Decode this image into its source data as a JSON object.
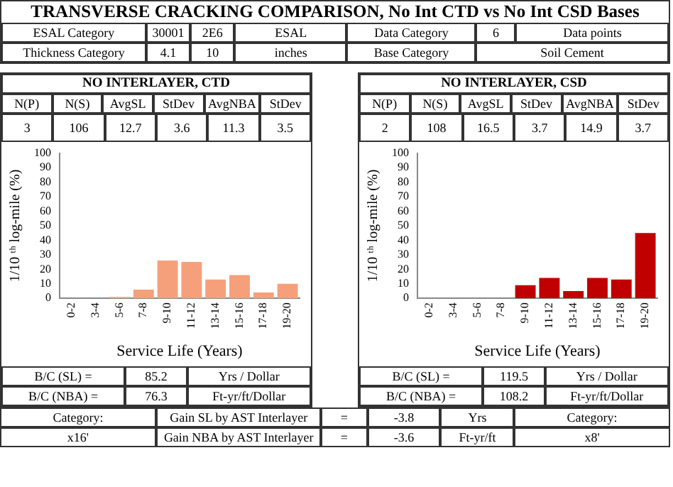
{
  "chart_data": [
    {
      "type": "other",
      "title": "TRANSVERSE CRACKING COMPARISON, No Int CTD vs No Int CSD Bases",
      "annotations": [
        "ESAL Category",
        "30001",
        "2E6",
        "ESAL",
        "Data Category",
        "6",
        "Data points",
        "Thickness Category",
        "4.1",
        "10",
        "inches",
        "Base Category",
        "Soil Cement"
      ]
    },
    {
      "type": "bar",
      "title": "NO INTERLAYER, CTD",
      "categories": [
        "0-2",
        "3-4",
        "5-6",
        "7-8",
        "9-10",
        "11-12",
        "13-14",
        "15-16",
        "17-18",
        "19-20"
      ],
      "values": [
        0,
        0,
        1,
        6,
        26,
        25,
        13,
        16,
        4,
        10
      ],
      "color": "#f5a07a",
      "ylim": [
        0,
        100
      ],
      "yticks": [
        0,
        10,
        20,
        30,
        40,
        50,
        60,
        70,
        80,
        90,
        100
      ],
      "grid": false,
      "legend": false,
      "xlabel": "Service Life (Years)",
      "ylabel": "1/10 ᵗʰ log-mile (%)",
      "annotations": [
        "N(P)",
        "N(S)",
        "AvgSL",
        "StDev",
        "AvgNBA",
        "StDev",
        "3",
        "106",
        "12.7",
        "3.6",
        "11.3",
        "3.5",
        "B/C (SL) =",
        "85.2",
        "Yrs / Dollar",
        "B/C (NBA) =",
        "76.3",
        "Ft-yr/ft/Dollar"
      ]
    },
    {
      "type": "bar",
      "title": "NO INTERLAYER, CSD",
      "categories": [
        "0-2",
        "3-4",
        "5-6",
        "7-8",
        "9-10",
        "11-12",
        "13-14",
        "15-16",
        "17-18",
        "19-20"
      ],
      "values": [
        0,
        0,
        0,
        0,
        9,
        14,
        5,
        14,
        13,
        45
      ],
      "color": "#c00000",
      "ylim": [
        0,
        100
      ],
      "yticks": [
        0,
        10,
        20,
        30,
        40,
        50,
        60,
        70,
        80,
        90,
        100
      ],
      "grid": false,
      "legend": false,
      "xlabel": "Service Life (Years)",
      "ylabel": "1/10 ᵗʰ log-mile (%)",
      "annotations": [
        "N(P)",
        "N(S)",
        "AvgSL",
        "StDev",
        "AvgNBA",
        "StDev",
        "2",
        "108",
        "16.5",
        "3.7",
        "14.9",
        "3.7",
        "B/C (SL) =",
        "119.5",
        "Yrs / Dollar",
        "B/C (NBA) =",
        "108.2",
        "Ft-yr/ft/Dollar"
      ]
    },
    {
      "type": "other",
      "annotations": [
        "Category:",
        "Gain SL by AST Interlayer",
        "=",
        "-3.8",
        "Yrs",
        "Category:",
        "x16'",
        "Gain NBA by AST Interlayer",
        "=",
        "-3.6",
        "Ft-yr/ft",
        "x8'"
      ]
    }
  ]
}
